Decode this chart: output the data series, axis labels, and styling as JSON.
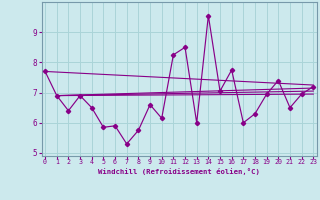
{
  "xlabel": "Windchill (Refroidissement éolien,°C)",
  "background_color": "#cce9ed",
  "line_color": "#880088",
  "grid_color": "#aad4d8",
  "x_hours": [
    0,
    1,
    2,
    3,
    4,
    5,
    6,
    7,
    8,
    9,
    10,
    11,
    12,
    13,
    14,
    15,
    16,
    17,
    18,
    19,
    20,
    21,
    22,
    23
  ],
  "y_values": [
    7.7,
    6.9,
    6.4,
    6.9,
    6.5,
    5.85,
    5.9,
    5.3,
    5.75,
    6.6,
    6.15,
    8.25,
    8.5,
    6.0,
    9.55,
    7.05,
    7.75,
    6.0,
    6.3,
    6.95,
    7.4,
    6.5,
    6.95,
    7.2
  ],
  "trend_lines": [
    {
      "x0": 0,
      "y0": 7.7,
      "x1": 23,
      "y1": 7.25
    },
    {
      "x0": 1,
      "y0": 6.9,
      "x1": 23,
      "y1": 7.15
    },
    {
      "x0": 1,
      "y0": 6.9,
      "x1": 23,
      "y1": 7.05
    },
    {
      "x0": 1,
      "y0": 6.9,
      "x1": 23,
      "y1": 6.95
    }
  ],
  "ylim": [
    4.9,
    10.0
  ],
  "yticks": [
    5,
    6,
    7,
    8,
    9
  ],
  "xlim": [
    -0.3,
    23.3
  ],
  "xticks": [
    0,
    1,
    2,
    3,
    4,
    5,
    6,
    7,
    8,
    9,
    10,
    11,
    12,
    13,
    14,
    15,
    16,
    17,
    18,
    19,
    20,
    21,
    22,
    23
  ]
}
